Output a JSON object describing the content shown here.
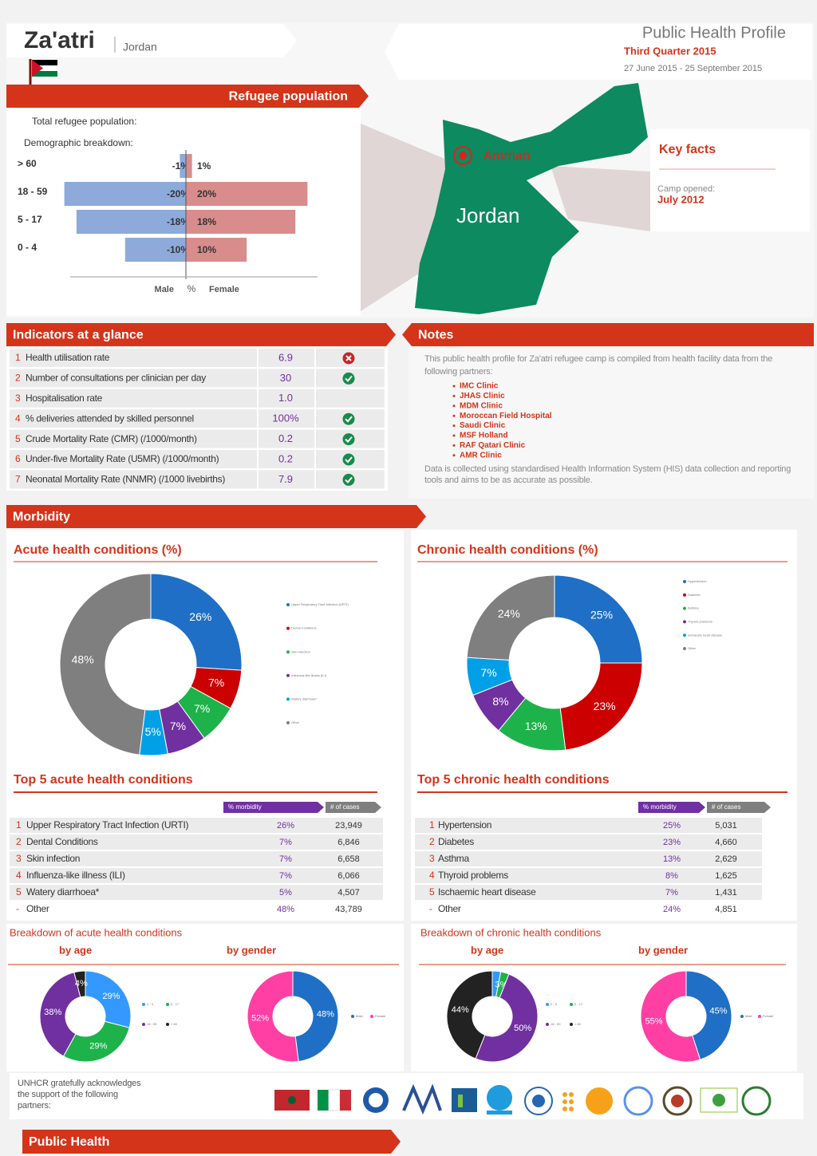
{
  "header": {
    "camp": "Za'atri",
    "country": "Jordan",
    "title": "Public Health Profile",
    "period": "Third Quarter 2015",
    "dates": "27 June 2015 - 25 September 2015"
  },
  "refugee_population": {
    "title": "Refugee population",
    "total_label": "Total refugee population:",
    "breakdown_label": "Demographic breakdown:",
    "pyramid": {
      "type": "bar",
      "categories": [
        "> 60",
        "18 - 59",
        "5 - 17",
        "0 - 4"
      ],
      "series": [
        {
          "name": "Male",
          "color": "#8eaadb",
          "values": [
            -1,
            -20,
            -18,
            -10
          ],
          "value_labels": [
            "-1%",
            "-20%",
            "-18%",
            "-10%"
          ]
        },
        {
          "name": "Female",
          "color": "#d98c8c",
          "values": [
            1,
            20,
            18,
            10
          ],
          "value_labels": [
            "1%",
            "20%",
            "18%",
            "10%"
          ]
        }
      ],
      "x_label": "%",
      "xlim": [
        -21,
        21
      ]
    }
  },
  "map": {
    "city": "Amman",
    "country": "Jordan"
  },
  "key_facts": {
    "title": "Key facts",
    "label": "Camp opened:",
    "value": "July 2012"
  },
  "indicators": {
    "title": "Indicators at a glance",
    "rows": [
      {
        "number": "1",
        "label": "Health utilisation rate",
        "value": "6.9",
        "status": "alert"
      },
      {
        "number": "2",
        "label": "Number of consultations per clinician per day",
        "value": "30",
        "status": "ok"
      },
      {
        "number": "3",
        "label": "Hospitalisation rate",
        "value": "1.0",
        "status": null
      },
      {
        "number": "4",
        "label": "% deliveries attended by skilled personnel",
        "value": "100%",
        "status": "ok"
      },
      {
        "number": "5",
        "label": "Crude Mortality Rate (CMR) (/1000/month)",
        "value": "0.2",
        "status": "ok"
      },
      {
        "number": "6",
        "label": "Under-five Mortality Rate (U5MR) (/1000/month)",
        "value": "0.2",
        "status": "ok"
      },
      {
        "number": "7",
        "label": "Neonatal Mortality Rate (NNMR) (/1000 livebirths)",
        "value": "7.9",
        "status": "ok"
      }
    ]
  },
  "notes": {
    "title": "Notes",
    "intro": "This public health profile for Za'atri refugee camp is compiled from health facility data from the following partners:",
    "partners": [
      "IMC Clinic",
      "JHAS Clinic",
      "MDM Clinic",
      "Moroccan Field Hospital",
      "Saudi Clinic",
      "MSF Holland",
      "RAF Qatari Clinic",
      "AMR Clinic"
    ],
    "footer": "Data is collected using standardised Health Information System (HIS) data collection and reporting tools and aims to be as accurate as possible."
  },
  "morbidity": {
    "title": "Morbidity",
    "acute": {
      "title": "Acute health conditions (%)",
      "chart": {
        "type": "pie",
        "categories": [
          "Upper Respiratory Tract Infection (URTI)",
          "Dental Conditions",
          "Skin infection",
          "Influenza-like illness (ILI)",
          "Watery diarrhoea*",
          "Other"
        ],
        "values": [
          26,
          7,
          7,
          7,
          5,
          48
        ],
        "value_labels": [
          "26%",
          "7%",
          "7%",
          "7%",
          "5%",
          "48%"
        ],
        "colors": [
          "#1f6fc6",
          "#cc0000",
          "#1db34a",
          "#7030a0",
          "#00a0e9",
          "#7f7f7f"
        ]
      },
      "top5_title": "Top 5 acute health conditions",
      "columns": [
        "% morbidity",
        "# of cases"
      ],
      "rows": [
        {
          "number": "1",
          "label": "Upper Respiratory Tract Infection (URTI)",
          "pct": "26%",
          "cases": "23,949"
        },
        {
          "number": "2",
          "label": "Dental Conditions",
          "pct": "7%",
          "cases": "6,846"
        },
        {
          "number": "3",
          "label": "Skin infection",
          "pct": "7%",
          "cases": "6,658"
        },
        {
          "number": "4",
          "label": "Influenza-like illness (ILI)",
          "pct": "7%",
          "cases": "6,066"
        },
        {
          "number": "5",
          "label": "Watery diarrhoea*",
          "pct": "5%",
          "cases": "4,507"
        },
        {
          "number": "-",
          "label": "Other",
          "pct": "48%",
          "cases": "43,789"
        }
      ],
      "breakdown": {
        "title": "Breakdown of acute health conditions",
        "age_label": "by age",
        "gender_label": "by gender",
        "age": {
          "type": "pie",
          "categories": [
            "0 - 4",
            "5 - 17",
            "18 - 59",
            "> 60"
          ],
          "values": [
            29,
            29,
            38,
            4
          ],
          "value_labels": [
            "29%",
            "29%",
            "38%",
            "4%"
          ],
          "colors": [
            "#3399ff",
            "#1db34a",
            "#7030a0",
            "#222222"
          ]
        },
        "gender": {
          "type": "pie",
          "categories": [
            "Male",
            "Female"
          ],
          "values": [
            48,
            52
          ],
          "value_labels": [
            "48%",
            "52%"
          ],
          "colors": [
            "#1f6fc6",
            "#ff3fa4"
          ]
        }
      }
    },
    "chronic": {
      "title": "Chronic health conditions (%)",
      "chart": {
        "type": "pie",
        "categories": [
          "Hypertension",
          "Diabetes",
          "Asthma",
          "Thyroid problems",
          "Ischaemic heart disease",
          "Other"
        ],
        "values": [
          25,
          23,
          13,
          8,
          7,
          24
        ],
        "value_labels": [
          "25%",
          "23%",
          "13%",
          "8%",
          "7%",
          "24%"
        ],
        "colors": [
          "#1f6fc6",
          "#cc0000",
          "#1db34a",
          "#7030a0",
          "#00a0e9",
          "#7f7f7f"
        ]
      },
      "top5_title": "Top 5 chronic health conditions",
      "columns": [
        "% morbidity",
        "# of cases"
      ],
      "rows": [
        {
          "number": "1",
          "label": "Hypertension",
          "pct": "25%",
          "cases": "5,031"
        },
        {
          "number": "2",
          "label": "Diabetes",
          "pct": "23%",
          "cases": "4,660"
        },
        {
          "number": "3",
          "label": "Asthma",
          "pct": "13%",
          "cases": "2,629"
        },
        {
          "number": "4",
          "label": "Thyroid problems",
          "pct": "8%",
          "cases": "1,625"
        },
        {
          "number": "5",
          "label": "Ischaemic heart disease",
          "pct": "7%",
          "cases": "1,431"
        },
        {
          "number": "-",
          "label": "Other",
          "pct": "24%",
          "cases": "4,851"
        }
      ],
      "breakdown": {
        "title": "Breakdown of chronic health conditions",
        "age_label": "by age",
        "gender_label": "by gender",
        "age": {
          "type": "pie",
          "categories": [
            "0 - 4",
            "5 - 17",
            "18 - 59",
            "> 60"
          ],
          "values": [
            3,
            3,
            50,
            44
          ],
          "value_labels": [
            null,
            "3%",
            "50%",
            "44%"
          ],
          "colors": [
            "#3399ff",
            "#1db34a",
            "#7030a0",
            "#222222"
          ]
        },
        "gender": {
          "type": "pie",
          "categories": [
            "Male",
            "Female"
          ],
          "values": [
            45,
            55
          ],
          "value_labels": [
            "45%",
            "55%"
          ],
          "colors": [
            "#1f6fc6",
            "#ff3fa4"
          ]
        }
      }
    }
  },
  "footer": {
    "partners_text": "UNHCR gratefully acknowledges the support of the following partners:",
    "section": "Public Health"
  }
}
